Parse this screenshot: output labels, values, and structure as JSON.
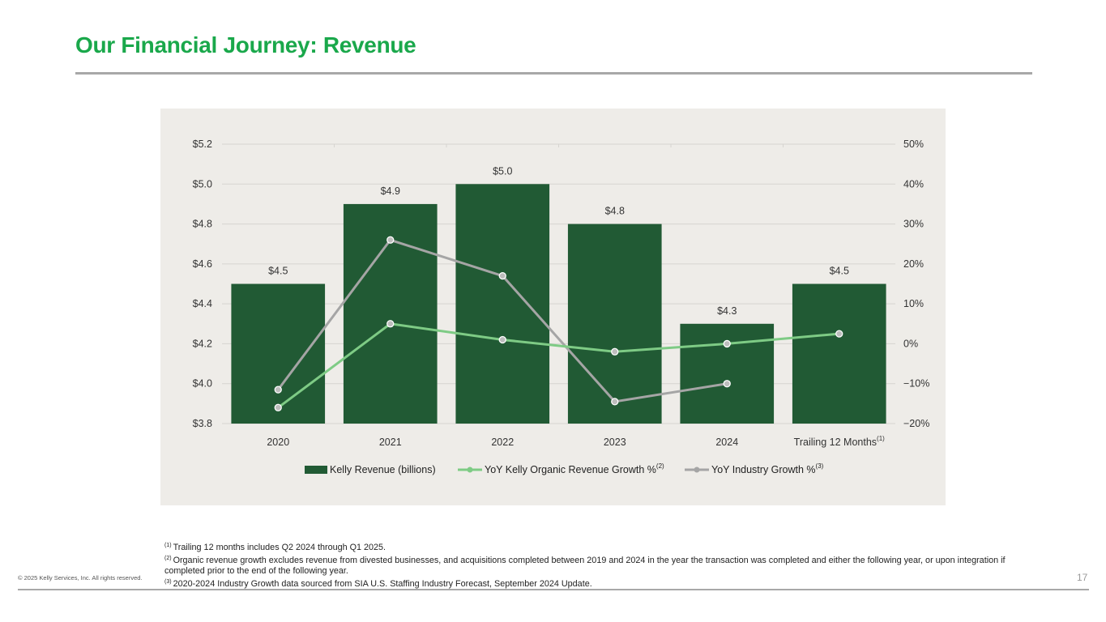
{
  "slide": {
    "title": "Our Financial Journey: Revenue",
    "page_number": "17",
    "copyright": "© 2025 Kelly Services, Inc. All rights reserved."
  },
  "colors": {
    "title": "#1aa84b",
    "bar": "#215a34",
    "organic_line": "#7ecb85",
    "industry_line": "#a5a5a5",
    "panel_bg": "#eeece8",
    "gridline": "#d6d4d0"
  },
  "chart_data": {
    "type": "bar",
    "categories": [
      "2020",
      "2021",
      "2022",
      "2023",
      "2024",
      "Trailing 12 Months"
    ],
    "category_superscripts": [
      "",
      "",
      "",
      "",
      "",
      "(1)"
    ],
    "left_axis": {
      "min": 3.8,
      "max": 5.2,
      "step": 0.2,
      "tick_labels": [
        "$3.8",
        "$4.0",
        "$4.2",
        "$4.4",
        "$4.6",
        "$4.8",
        "$5.0",
        "$5.2"
      ]
    },
    "right_axis": {
      "min": -20,
      "max": 50,
      "step": 10,
      "tick_labels": [
        "-20%",
        "-10%",
        "0%",
        "10%",
        "20%",
        "30%",
        "40%",
        "50%"
      ]
    },
    "series": [
      {
        "name": "Kelly Revenue (billions)",
        "type": "bar",
        "axis": "left",
        "values": [
          4.5,
          4.9,
          5.0,
          4.8,
          4.3,
          4.5
        ],
        "data_labels": [
          "$4.5",
          "$4.9",
          "$5.0",
          "$4.8",
          "$4.3",
          "$4.5"
        ]
      },
      {
        "name": "YoY Kelly Organic Revenue Growth %",
        "superscript": "(2)",
        "type": "line",
        "axis": "right",
        "values": [
          -16,
          5,
          1,
          -2,
          0,
          2.5
        ]
      },
      {
        "name": "YoY Industry Growth %",
        "superscript": "(3)",
        "type": "line",
        "axis": "right",
        "values": [
          -11.5,
          26,
          17,
          -14.5,
          -10,
          null
        ]
      }
    ],
    "grid": true,
    "legend_position": "bottom"
  },
  "footnotes": [
    {
      "marker": "(1)",
      "text": "Trailing 12 months includes Q2 2024 through Q1 2025."
    },
    {
      "marker": "(2)",
      "text": "Organic revenue growth excludes revenue from divested businesses, and acquisitions completed between 2019 and 2024 in the year the transaction was completed and either the following year, or upon integration if completed prior to the end of the following year."
    },
    {
      "marker": "(3)",
      "text": "2020-2024 Industry Growth data sourced from SIA U.S. Staffing Industry Forecast, September 2024 Update."
    }
  ]
}
